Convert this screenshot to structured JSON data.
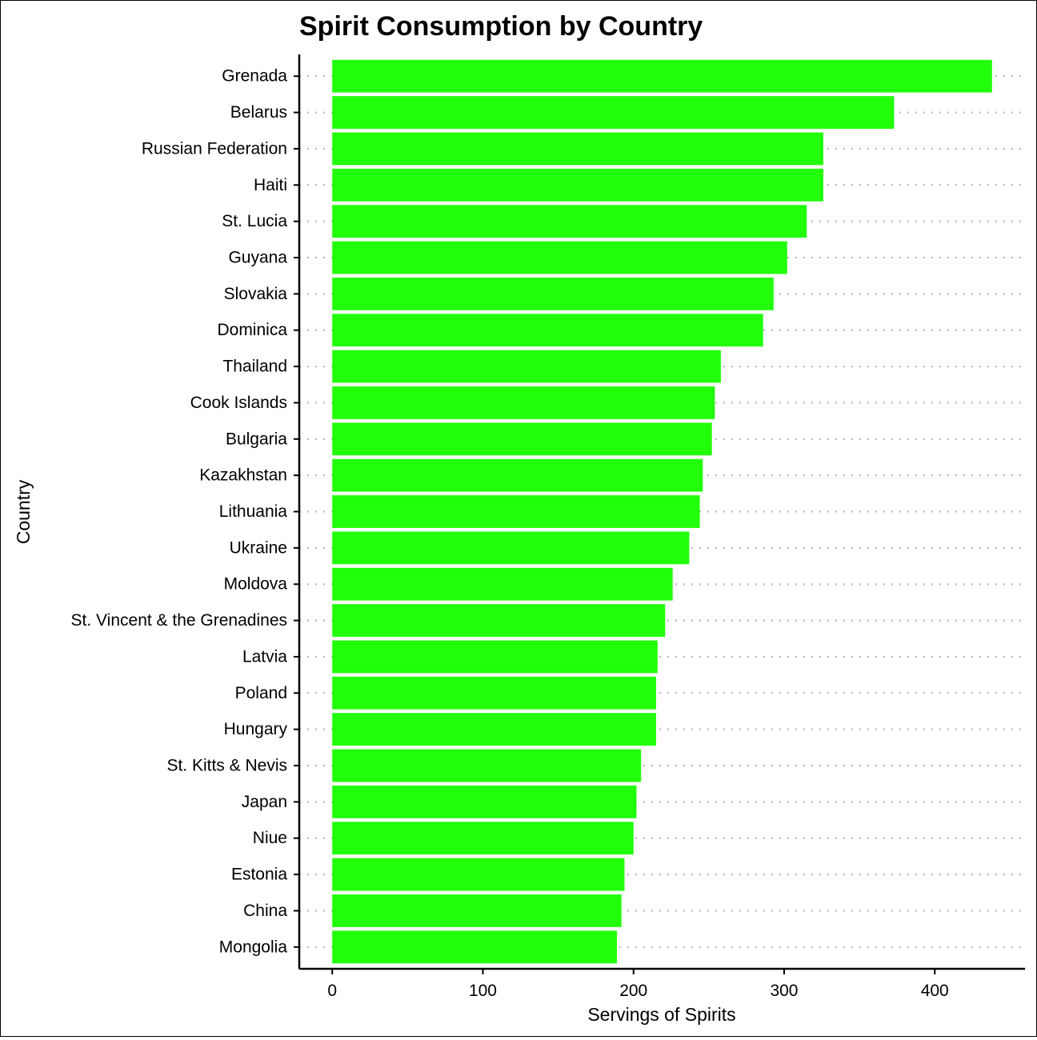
{
  "chart_data": {
    "type": "bar",
    "orientation": "horizontal",
    "title": "Spirit Consumption by Country",
    "xlabel": "Servings of Spirits",
    "ylabel": "Country",
    "categories": [
      "Grenada",
      "Belarus",
      "Russian Federation",
      "Haiti",
      "St. Lucia",
      "Guyana",
      "Slovakia",
      "Dominica",
      "Thailand",
      "Cook Islands",
      "Bulgaria",
      "Kazakhstan",
      "Lithuania",
      "Ukraine",
      "Moldova",
      "St. Vincent & the Grenadines",
      "Latvia",
      "Poland",
      "Hungary",
      "St. Kitts & Nevis",
      "Japan",
      "Niue",
      "Estonia",
      "China",
      "Mongolia"
    ],
    "values": [
      438,
      373,
      326,
      326,
      315,
      302,
      293,
      286,
      258,
      254,
      252,
      246,
      244,
      237,
      226,
      221,
      216,
      215,
      215,
      205,
      202,
      200,
      194,
      192,
      189
    ],
    "xlim": [
      -21.9,
      459.9
    ],
    "xticks": [
      0,
      100,
      200,
      300,
      400
    ],
    "xtick_labels": [
      "0",
      "100",
      "200",
      "300",
      "400"
    ],
    "bar_color": "#22ff0a",
    "grid": "horizontal dotted",
    "legend": "none"
  }
}
